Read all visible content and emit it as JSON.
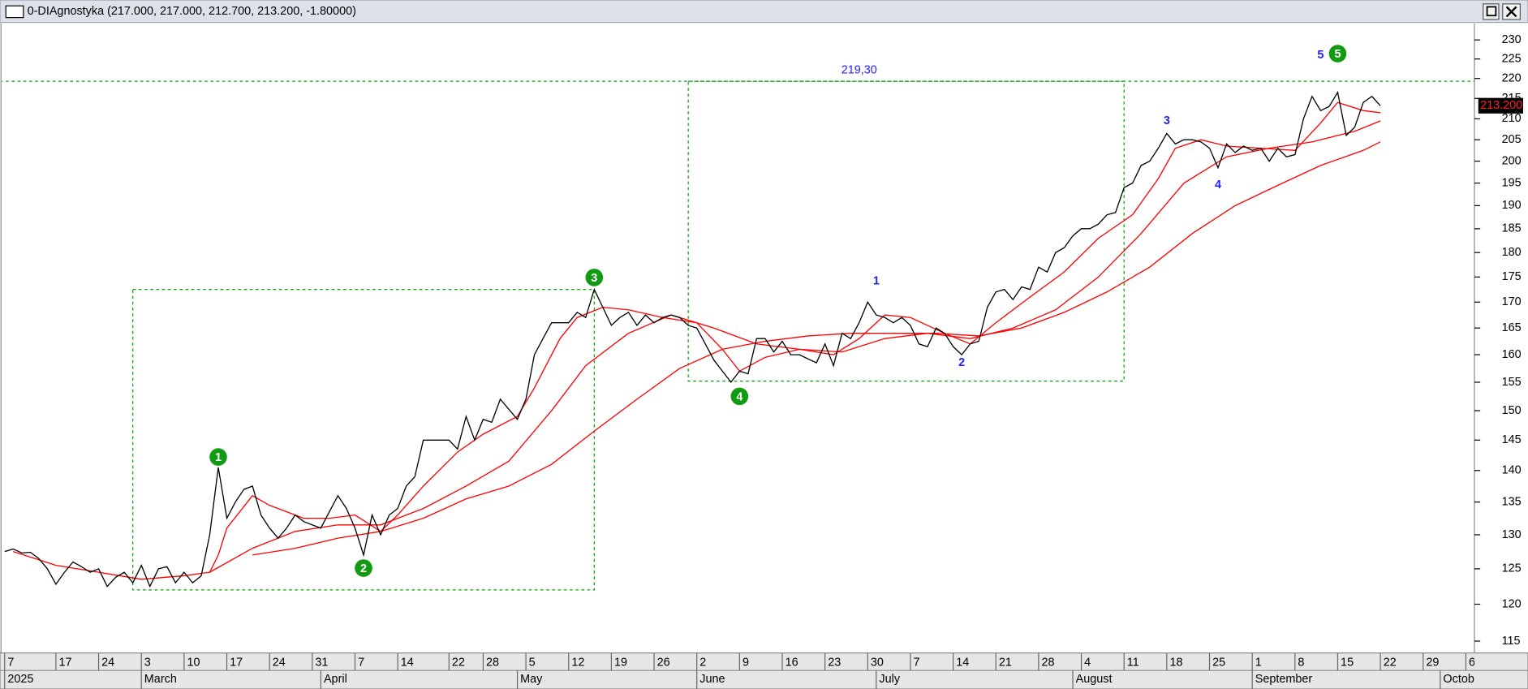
{
  "chart_data": {
    "type": "line",
    "window_title": "0-DIAgnostyka (217.000, 217.000, 212.700, 213.200, -1.80000)",
    "log_scale": true,
    "ylim": [
      113.7,
      233.9
    ],
    "yticks": [
      115,
      120,
      125,
      130,
      135,
      140,
      145,
      150,
      155,
      160,
      165,
      170,
      175,
      180,
      185,
      190,
      195,
      200,
      205,
      210,
      215,
      220,
      225,
      230
    ],
    "xlim": [
      "2025-02-06",
      "2025-10-07"
    ],
    "xticks": [
      {
        "value": "2025-02-07",
        "label": "7"
      },
      {
        "value": "2025-02-17",
        "label": "17"
      },
      {
        "value": "2025-02-24",
        "label": "24"
      },
      {
        "value": "2025-03-03",
        "label": "3"
      },
      {
        "value": "2025-03-10",
        "label": "10"
      },
      {
        "value": "2025-03-17",
        "label": "17"
      },
      {
        "value": "2025-03-24",
        "label": "24"
      },
      {
        "value": "2025-03-31",
        "label": "31"
      },
      {
        "value": "2025-04-07",
        "label": "7"
      },
      {
        "value": "2025-04-14",
        "label": "14"
      },
      {
        "value": "2025-04-22",
        "label": "22"
      },
      {
        "value": "2025-04-28",
        "label": "28"
      },
      {
        "value": "2025-05-05",
        "label": "5"
      },
      {
        "value": "2025-05-12",
        "label": "12"
      },
      {
        "value": "2025-05-19",
        "label": "19"
      },
      {
        "value": "2025-05-26",
        "label": "26"
      },
      {
        "value": "2025-06-02",
        "label": "2"
      },
      {
        "value": "2025-06-09",
        "label": "9"
      },
      {
        "value": "2025-06-16",
        "label": "16"
      },
      {
        "value": "2025-06-23",
        "label": "23"
      },
      {
        "value": "2025-06-30",
        "label": "30"
      },
      {
        "value": "2025-07-07",
        "label": "7"
      },
      {
        "value": "2025-07-14",
        "label": "14"
      },
      {
        "value": "2025-07-21",
        "label": "21"
      },
      {
        "value": "2025-07-28",
        "label": "28"
      },
      {
        "value": "2025-08-04",
        "label": "4"
      },
      {
        "value": "2025-08-11",
        "label": "11"
      },
      {
        "value": "2025-08-18",
        "label": "18"
      },
      {
        "value": "2025-08-25",
        "label": "25"
      },
      {
        "value": "2025-09-01",
        "label": "1"
      },
      {
        "value": "2025-09-08",
        "label": "8"
      },
      {
        "value": "2025-09-15",
        "label": "15"
      },
      {
        "value": "2025-09-22",
        "label": "22"
      },
      {
        "value": "2025-09-29",
        "label": "29"
      },
      {
        "value": "2025-10-06",
        "label": "6"
      }
    ],
    "month_ticks": [
      {
        "value": "2025-02-07",
        "label": "2025"
      },
      {
        "value": "2025-03-03",
        "label": "March"
      },
      {
        "value": "2025-04-01",
        "label": "April"
      },
      {
        "value": "2025-05-02",
        "label": "May"
      },
      {
        "value": "2025-06-02",
        "label": "June"
      },
      {
        "value": "2025-07-01",
        "label": "July"
      },
      {
        "value": "2025-08-01",
        "label": "August"
      },
      {
        "value": "2025-09-01",
        "label": "September"
      },
      {
        "value": "2025-10-01",
        "label": "October"
      }
    ],
    "series": [
      {
        "color": "#000000",
        "x": [
          "2025-02-07",
          "2025-02-10",
          "2025-02-11",
          "2025-02-12",
          "2025-02-13",
          "2025-02-14",
          "2025-02-17",
          "2025-02-18",
          "2025-02-19",
          "2025-02-20",
          "2025-02-21",
          "2025-02-24",
          "2025-02-25",
          "2025-02-26",
          "2025-02-27",
          "2025-02-28",
          "2025-03-03",
          "2025-03-04",
          "2025-03-05",
          "2025-03-06",
          "2025-03-07",
          "2025-03-10",
          "2025-03-11",
          "2025-03-12",
          "2025-03-13",
          "2025-03-14",
          "2025-03-17",
          "2025-03-18",
          "2025-03-19",
          "2025-03-20",
          "2025-03-21",
          "2025-03-24",
          "2025-03-25",
          "2025-03-26",
          "2025-03-27",
          "2025-03-28",
          "2025-03-31",
          "2025-04-01",
          "2025-04-02",
          "2025-04-03",
          "2025-04-04",
          "2025-04-07",
          "2025-04-08",
          "2025-04-09",
          "2025-04-10",
          "2025-04-11",
          "2025-04-14",
          "2025-04-15",
          "2025-04-16",
          "2025-04-17",
          "2025-04-22",
          "2025-04-23",
          "2025-04-24",
          "2025-04-25",
          "2025-04-28",
          "2025-04-29",
          "2025-04-30",
          "2025-05-02",
          "2025-05-05",
          "2025-05-06",
          "2025-05-07",
          "2025-05-08",
          "2025-05-09",
          "2025-05-12",
          "2025-05-13",
          "2025-05-14",
          "2025-05-15",
          "2025-05-16",
          "2025-05-19",
          "2025-05-20",
          "2025-05-21",
          "2025-05-22",
          "2025-05-23",
          "2025-05-26",
          "2025-05-27",
          "2025-05-28",
          "2025-05-29",
          "2025-05-30",
          "2025-06-02",
          "2025-06-03",
          "2025-06-04",
          "2025-06-05",
          "2025-06-06",
          "2025-06-09",
          "2025-06-10",
          "2025-06-11",
          "2025-06-12",
          "2025-06-13",
          "2025-06-16",
          "2025-06-17",
          "2025-06-18",
          "2025-06-20",
          "2025-06-23",
          "2025-06-24",
          "2025-06-25",
          "2025-06-26",
          "2025-06-27",
          "2025-06-30",
          "2025-07-01",
          "2025-07-02",
          "2025-07-03",
          "2025-07-04",
          "2025-07-07",
          "2025-07-08",
          "2025-07-09",
          "2025-07-10",
          "2025-07-11",
          "2025-07-14",
          "2025-07-15",
          "2025-07-16",
          "2025-07-17",
          "2025-07-18",
          "2025-07-21",
          "2025-07-22",
          "2025-07-23",
          "2025-07-24",
          "2025-07-25",
          "2025-07-28",
          "2025-07-29",
          "2025-07-30",
          "2025-07-31",
          "2025-08-01",
          "2025-08-04",
          "2025-08-05",
          "2025-08-06",
          "2025-08-07",
          "2025-08-08",
          "2025-08-11",
          "2025-08-12",
          "2025-08-13",
          "2025-08-14",
          "2025-08-15",
          "2025-08-18",
          "2025-08-19",
          "2025-08-20",
          "2025-08-21",
          "2025-08-22",
          "2025-08-25",
          "2025-08-26",
          "2025-08-27",
          "2025-08-28",
          "2025-08-29",
          "2025-09-01",
          "2025-09-02",
          "2025-09-03",
          "2025-09-04",
          "2025-09-05",
          "2025-09-08",
          "2025-09-09",
          "2025-09-10",
          "2025-09-11",
          "2025-09-12",
          "2025-09-15",
          "2025-09-16",
          "2025-09-17",
          "2025-09-18",
          "2025-09-19",
          "2025-09-22"
        ],
        "values": [
          127.5,
          127.9,
          127.3,
          127.4,
          126.5,
          125,
          122.8,
          124.5,
          126,
          125.3,
          124.5,
          125,
          122.5,
          123.8,
          124.5,
          123,
          125.5,
          122.5,
          125,
          125.3,
          123,
          124.5,
          123,
          124,
          130,
          140.5,
          132.5,
          135,
          137,
          137.5,
          133,
          131,
          129.5,
          131,
          133,
          132,
          131.5,
          131,
          133.5,
          136,
          134,
          131,
          127,
          133,
          130,
          133,
          134,
          137.5,
          139,
          145,
          145,
          143.5,
          149,
          145,
          148.5,
          148,
          152,
          148.5,
          152,
          160,
          163,
          166,
          166,
          166,
          168,
          167,
          172.5,
          169,
          165.5,
          167,
          168,
          165.5,
          167.5,
          166,
          167,
          167.5,
          167,
          165.5,
          165,
          162,
          159,
          157,
          155,
          157,
          156.5,
          163,
          163,
          160.5,
          162.5,
          160,
          160,
          158.5,
          162,
          158,
          164,
          163,
          166,
          170,
          167.5,
          167,
          166,
          167,
          165.5,
          162,
          161.5,
          165,
          164,
          161.5,
          160,
          162,
          162.5,
          169,
          172,
          172.5,
          170.5,
          173,
          172.5,
          177,
          176,
          180,
          181,
          183.5,
          185,
          185,
          186,
          188,
          188.5,
          194,
          195,
          199,
          200,
          203,
          206.5,
          204,
          205,
          205,
          204.5,
          203,
          198.5,
          204,
          202,
          203.5,
          202.5,
          203,
          200,
          203,
          201,
          201.5,
          210,
          215.5,
          212,
          213,
          216.5,
          206,
          208,
          214,
          215.5,
          213.2
        ]
      },
      {
        "color": "#ff0000",
        "x": [
          "2025-02-10",
          "2025-02-17",
          "2025-02-24",
          "2025-03-03",
          "2025-03-10",
          "2025-03-13",
          "2025-03-14",
          "2025-03-17",
          "2025-03-20",
          "2025-03-24",
          "2025-03-28",
          "2025-04-02",
          "2025-04-07",
          "2025-04-10",
          "2025-04-14",
          "2025-04-17",
          "2025-04-23",
          "2025-04-28",
          "2025-05-02",
          "2025-05-06",
          "2025-05-09",
          "2025-05-13",
          "2025-05-16",
          "2025-05-21",
          "2025-05-27",
          "2025-06-02",
          "2025-06-05",
          "2025-06-09",
          "2025-06-12",
          "2025-06-18",
          "2025-06-24",
          "2025-06-27",
          "2025-07-02",
          "2025-07-07",
          "2025-07-11",
          "2025-07-16",
          "2025-07-21",
          "2025-07-25",
          "2025-07-31",
          "2025-08-06",
          "2025-08-12",
          "2025-08-15",
          "2025-08-19",
          "2025-08-22",
          "2025-08-27",
          "2025-09-02",
          "2025-09-08",
          "2025-09-11",
          "2025-09-15",
          "2025-09-18",
          "2025-09-22"
        ],
        "values": [
          127.5,
          125.5,
          124.5,
          123.5,
          124,
          124.5,
          127,
          131,
          136,
          134.5,
          132.5,
          132.5,
          133,
          130.5,
          133,
          137.5,
          143,
          146,
          149,
          154,
          163,
          167,
          169,
          168.5,
          167,
          166,
          161,
          157,
          159.5,
          161,
          160,
          163,
          167.5,
          167,
          164,
          162,
          166,
          171,
          176,
          183,
          188,
          196,
          203,
          205,
          203.5,
          203,
          202.5,
          209,
          214,
          212,
          211.5
        ]
      },
      {
        "color": "#ff0000",
        "x": [
          "2025-03-13",
          "2025-03-20",
          "2025-03-27",
          "2025-04-03",
          "2025-04-10",
          "2025-04-17",
          "2025-04-24",
          "2025-05-01",
          "2025-05-08",
          "2025-05-14",
          "2025-05-21",
          "2025-05-28",
          "2025-06-04",
          "2025-06-11",
          "2025-06-18",
          "2025-06-25",
          "2025-07-02",
          "2025-07-09",
          "2025-07-16",
          "2025-07-23",
          "2025-07-30",
          "2025-08-06",
          "2025-08-13",
          "2025-08-20",
          "2025-08-27",
          "2025-09-03",
          "2025-09-10",
          "2025-09-17",
          "2025-09-22"
        ],
        "values": [
          124.5,
          128,
          130.5,
          131.5,
          131.5,
          134,
          137.5,
          141.5,
          150,
          158,
          164,
          167.5,
          165,
          162,
          161,
          160.5,
          163,
          164,
          163,
          165,
          168.5,
          175,
          184,
          195,
          201,
          203,
          204.5,
          207,
          209.5
        ]
      },
      {
        "color": "#ff0000",
        "x": [
          "2025-03-20",
          "2025-03-27",
          "2025-04-03",
          "2025-04-10",
          "2025-04-17",
          "2025-04-24",
          "2025-05-01",
          "2025-05-08",
          "2025-05-15",
          "2025-05-22",
          "2025-05-29",
          "2025-06-05",
          "2025-06-12",
          "2025-06-19",
          "2025-06-26",
          "2025-07-03",
          "2025-07-10",
          "2025-07-17",
          "2025-07-24",
          "2025-07-31",
          "2025-08-07",
          "2025-08-14",
          "2025-08-21",
          "2025-08-28",
          "2025-09-04",
          "2025-09-11",
          "2025-09-18",
          "2025-09-22"
        ],
        "values": [
          127,
          128,
          129.5,
          130.5,
          132.5,
          135.5,
          137.5,
          141,
          146.5,
          152,
          157.5,
          161,
          162.5,
          163.5,
          164,
          164,
          164,
          163.5,
          165,
          168,
          172,
          177,
          184,
          190,
          194.5,
          199,
          202.5,
          204.5
        ]
      }
    ],
    "last_value": {
      "value": 213.2,
      "label": "213.200"
    },
    "hline": {
      "value": 219.3,
      "label": "219,30",
      "label_x": "2025-06-27",
      "color": "#00a000"
    },
    "boxes": [
      {
        "x": [
          "2025-02-28",
          "2025-05-15"
        ],
        "y": [
          122,
          172.5
        ]
      },
      {
        "x": [
          "2025-05-30",
          "2025-08-11"
        ],
        "y": [
          155.2,
          219.3
        ]
      }
    ],
    "waves": [
      {
        "text": "1",
        "x": "2025-03-14",
        "y": 142.2,
        "style": "circle"
      },
      {
        "text": "2",
        "x": "2025-04-08",
        "y": 125.1,
        "style": "circle"
      },
      {
        "text": "3",
        "x": "2025-05-15",
        "y": 174.9,
        "style": "circle"
      },
      {
        "text": "4",
        "x": "2025-06-09",
        "y": 152.5,
        "style": "circle"
      },
      {
        "text": "5",
        "x": "2025-09-15",
        "y": 226.4,
        "style": "circle"
      },
      {
        "text": "1",
        "x": "2025-07-01",
        "y": 174.1,
        "style": "plain"
      },
      {
        "text": "2",
        "x": "2025-07-15",
        "y": 158.5,
        "style": "plain"
      },
      {
        "text": "3",
        "x": "2025-08-18",
        "y": 209.5,
        "style": "plain"
      },
      {
        "text": "4",
        "x": "2025-08-26",
        "y": 194.5,
        "style": "plain"
      },
      {
        "text": "5",
        "x": "2025-09-11",
        "y": 225.9,
        "style": "plain"
      }
    ]
  }
}
